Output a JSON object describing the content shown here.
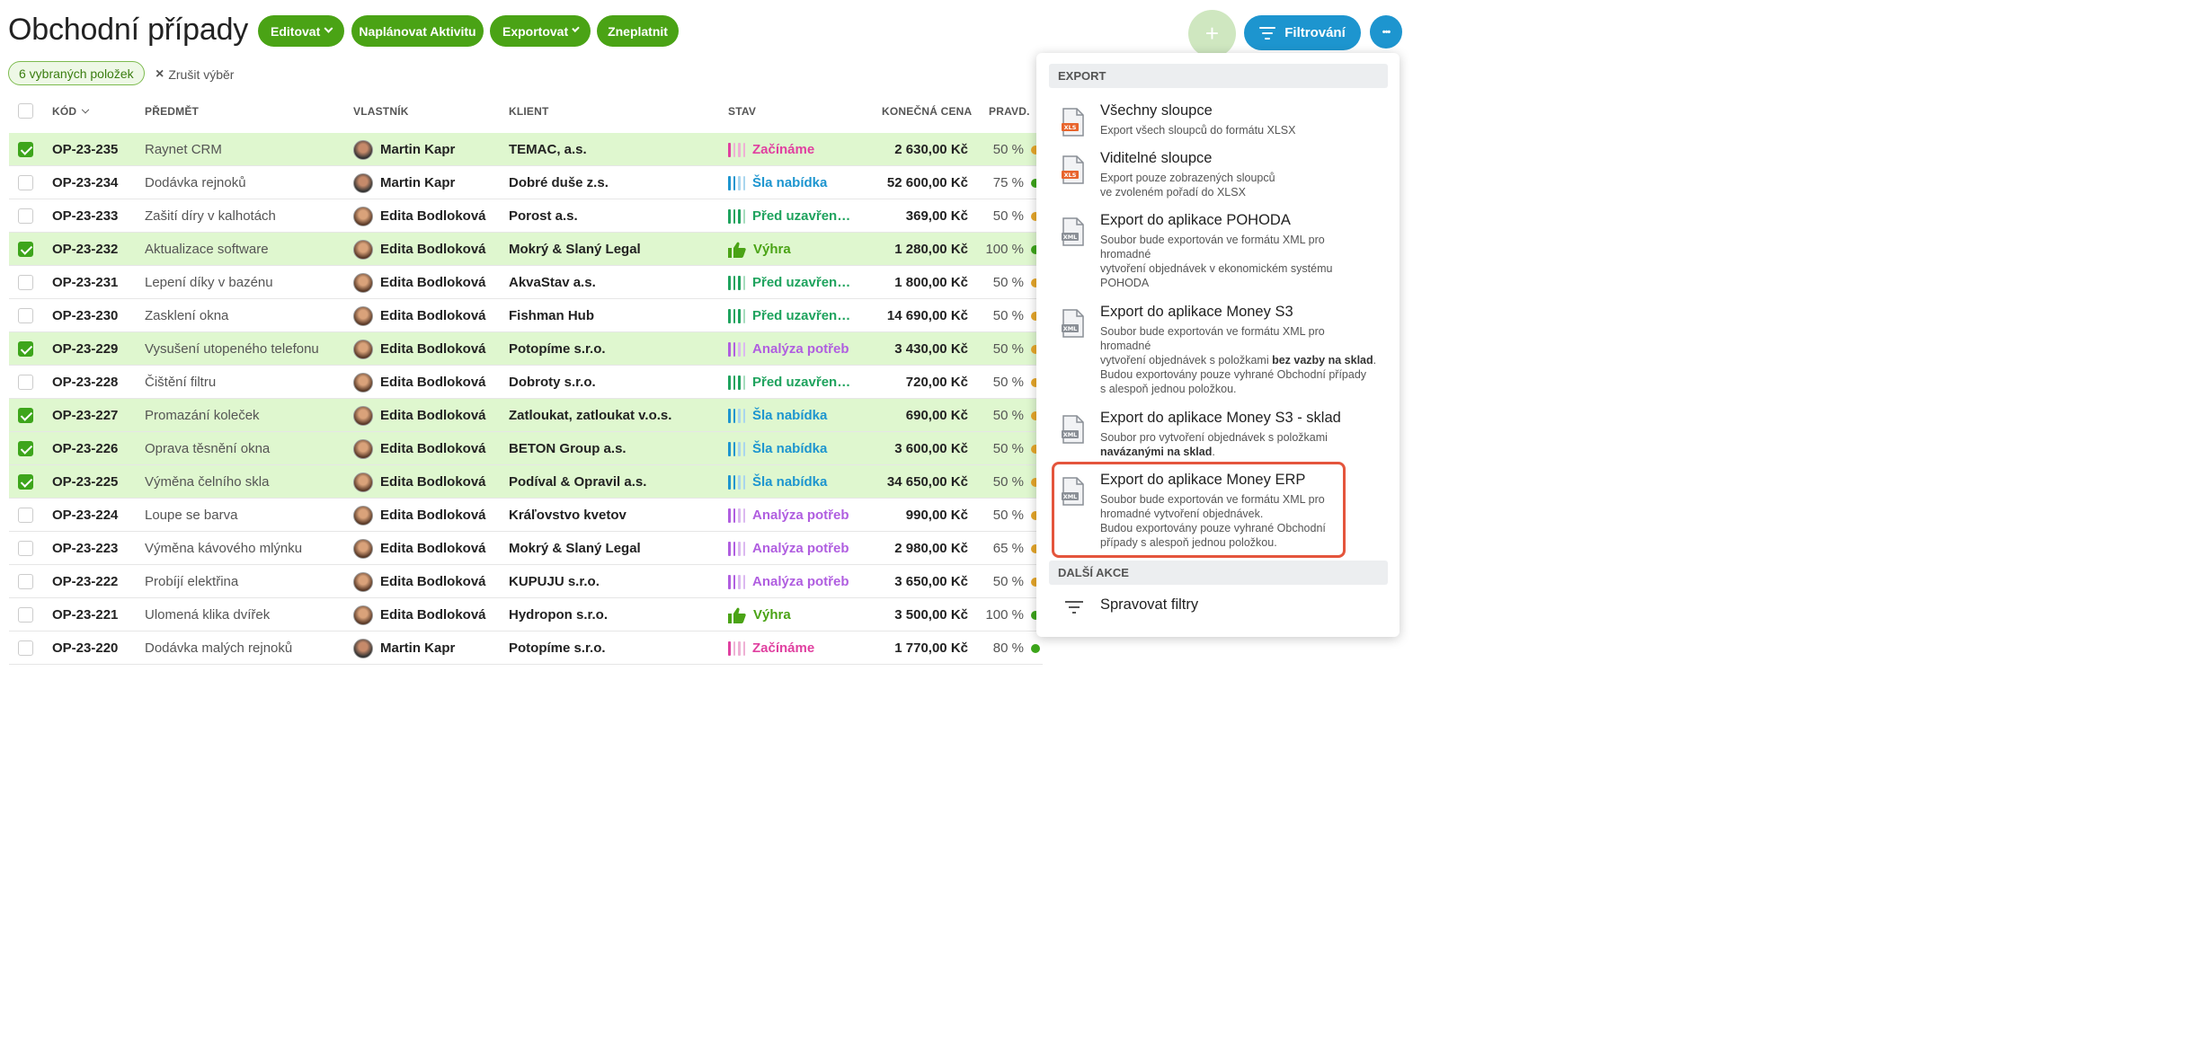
{
  "header": {
    "title": "Obchodní případy",
    "actions": {
      "edit": "Editovat",
      "plan": "Naplánovat Aktivitu",
      "export": "Exportovat",
      "invalidate": "Zneplatnit"
    },
    "add": "+",
    "filter": "Filtrování",
    "more": "•••"
  },
  "selection": {
    "count_label": "6 vybraných položek",
    "clear_label": "Zrušit výběr",
    "clear_icon": "×"
  },
  "table": {
    "columns": {
      "code": "KÓD",
      "subject": "PŘEDMĚT",
      "owner": "VLASTNÍK",
      "client": "KLIENT",
      "state": "STAV",
      "price": "KONEČNÁ CENA",
      "prob": "PRAVD."
    },
    "rows": [
      {
        "selected": true,
        "code": "OP-23-235",
        "subject": "Raynet CRM",
        "owner": "Martin Kapr",
        "client": "TEMAC, a.s.",
        "state": "Začínáme",
        "state_type": "start",
        "price": "2 630,00 Kč",
        "prob": "50 %",
        "dot_color": "#e6a72a"
      },
      {
        "selected": false,
        "code": "OP-23-234",
        "subject": "Dodávka rejnoků",
        "owner": "Martin Kapr",
        "client": "Dobré duše z.s.",
        "state": "Šla nabídka",
        "state_type": "offer",
        "price": "52 600,00 Kč",
        "prob": "75 %",
        "dot_color": "#3da51b"
      },
      {
        "selected": false,
        "code": "OP-23-233",
        "subject": "Zašití díry v kalhotách",
        "owner": "Edita Bodloková",
        "client": "Porost a.s.",
        "state": "Před uzavřen…",
        "state_type": "closing",
        "price": "369,00 Kč",
        "prob": "50 %",
        "dot_color": "#e6a72a"
      },
      {
        "selected": true,
        "code": "OP-23-232",
        "subject": "Aktualizace software",
        "owner": "Edita Bodloková",
        "client": "Mokrý & Slaný Legal",
        "state": "Výhra",
        "state_type": "win",
        "price": "1 280,00 Kč",
        "prob": "100 %",
        "dot_color": "#3da51b"
      },
      {
        "selected": false,
        "code": "OP-23-231",
        "subject": "Lepení díky v bazénu",
        "owner": "Edita Bodloková",
        "client": "AkvaStav a.s.",
        "state": "Před uzavřen…",
        "state_type": "closing",
        "price": "1 800,00 Kč",
        "prob": "50 %",
        "dot_color": "#e6a72a"
      },
      {
        "selected": false,
        "code": "OP-23-230",
        "subject": "Zasklení okna",
        "owner": "Edita Bodloková",
        "client": "Fishman Hub",
        "state": "Před uzavřen…",
        "state_type": "closing",
        "price": "14 690,00 Kč",
        "prob": "50 %",
        "dot_color": "#e6a72a"
      },
      {
        "selected": true,
        "code": "OP-23-229",
        "subject": "Vysušení utopeného telefonu",
        "owner": "Edita Bodloková",
        "client": "Potopíme s.r.o.",
        "state": "Analýza potřeb",
        "state_type": "analysis",
        "price": "3 430,00 Kč",
        "prob": "50 %",
        "dot_color": "#e6a72a"
      },
      {
        "selected": false,
        "code": "OP-23-228",
        "subject": "Čištění filtru",
        "owner": "Edita Bodloková",
        "client": "Dobroty s.r.o.",
        "state": "Před uzavřen…",
        "state_type": "closing",
        "price": "720,00 Kč",
        "prob": "50 %",
        "dot_color": "#e6a72a"
      },
      {
        "selected": true,
        "code": "OP-23-227",
        "subject": "Promazání koleček",
        "owner": "Edita Bodloková",
        "client": "Zatloukat, zatloukat v.o.s.",
        "state": "Šla nabídka",
        "state_type": "offer",
        "price": "690,00 Kč",
        "prob": "50 %",
        "dot_color": "#e6a72a"
      },
      {
        "selected": true,
        "code": "OP-23-226",
        "subject": "Oprava těsnění okna",
        "owner": "Edita Bodloková",
        "client": "BETON Group a.s.",
        "state": "Šla nabídka",
        "state_type": "offer",
        "price": "3 600,00 Kč",
        "prob": "50 %",
        "dot_color": "#e6a72a"
      },
      {
        "selected": true,
        "code": "OP-23-225",
        "subject": "Výměna čelního skla",
        "owner": "Edita Bodloková",
        "client": "Podíval & Opravil a.s.",
        "state": "Šla nabídka",
        "state_type": "offer",
        "price": "34 650,00 Kč",
        "prob": "50 %",
        "dot_color": "#e6a72a"
      },
      {
        "selected": false,
        "code": "OP-23-224",
        "subject": "Loupe se barva",
        "owner": "Edita Bodloková",
        "client": "Kráľovstvo kvetov",
        "state": "Analýza potřeb",
        "state_type": "analysis",
        "price": "990,00 Kč",
        "prob": "50 %",
        "dot_color": "#e6a72a"
      },
      {
        "selected": false,
        "code": "OP-23-223",
        "subject": "Výměna kávového mlýnku",
        "owner": "Edita Bodloková",
        "client": "Mokrý & Slaný Legal",
        "state": "Analýza potřeb",
        "state_type": "analysis",
        "price": "2 980,00 Kč",
        "prob": "65 %",
        "dot_color": "#e6a72a"
      },
      {
        "selected": false,
        "code": "OP-23-222",
        "subject": "Probíjí elektřina",
        "owner": "Edita Bodloková",
        "client": "KUPUJU s.r.o.",
        "state": "Analýza potřeb",
        "state_type": "analysis",
        "price": "3 650,00 Kč",
        "prob": "50 %",
        "dot_color": "#e6a72a"
      },
      {
        "selected": false,
        "code": "OP-23-221",
        "subject": "Ulomená klika dvířek",
        "owner": "Edita Bodloková",
        "client": "Hydropon s.r.o.",
        "state": "Výhra",
        "state_type": "win",
        "price": "3 500,00 Kč",
        "prob": "100 %",
        "dot_color": "#3da51b"
      },
      {
        "selected": false,
        "code": "OP-23-220",
        "subject": "Dodávka malých rejnoků",
        "owner": "Martin Kapr",
        "client": "Potopíme s.r.o.",
        "state": "Začínáme",
        "state_type": "start",
        "price": "1 770,00 Kč",
        "prob": "80 %",
        "dot_color": "#3da51b"
      }
    ]
  },
  "state_colors": {
    "start": "#e040a0",
    "offer": "#1d95cf",
    "closing": "#1fa35e",
    "win": "#4aa315",
    "analysis": "#b05ee0"
  },
  "dropdown": {
    "export_header": "EXPORT",
    "items": [
      {
        "icon": "xlsx-file-icon",
        "title": "Všechny sloupce",
        "desc": "Export všech sloupců do formátu XLSX"
      },
      {
        "icon": "xlsx-file-icon",
        "title": "Viditelné sloupce",
        "desc_lines": [
          "Export pouze zobrazených sloupců",
          "ve zvoleném pořadí do XLSX"
        ]
      },
      {
        "icon": "xml-file-icon",
        "title": "Export do aplikace POHODA",
        "desc_lines": [
          "Soubor bude exportován ve formátu XML pro",
          "hromadné",
          "vytvoření objednávek v ekonomickém systému",
          "POHODA"
        ]
      },
      {
        "icon": "xml-file-icon",
        "title": "Export do aplikace Money S3",
        "desc_lines": [
          "Soubor bude exportován ve formátu XML pro",
          "hromadné"
        ],
        "desc_mid": "vytvoření objednávek s položkami ",
        "desc_bold": "bez vazby na sklad",
        "desc_after": ".",
        "desc_tail": [
          "Budou exportovány pouze vyhrané Obchodní případy",
          "s alespoň jednou položkou."
        ]
      },
      {
        "icon": "xml-file-icon",
        "title": "Export do aplikace Money S3 - sklad",
        "desc_pre": "Soubor pro vytvoření objednávek s položkami",
        "desc_bold": "navázanými na sklad",
        "desc_after": "."
      },
      {
        "icon": "xml-file-icon",
        "title": "Export do aplikace Money ERP",
        "desc_lines": [
          "Soubor bude exportován ve formátu XML pro",
          "hromadné vytvoření objednávek.",
          "Budou exportovány pouze vyhrané Obchodní",
          "případy s alespoň jednou položkou."
        ]
      }
    ],
    "other_header": "DALŠÍ AKCE",
    "manage_filters": "Spravovat filtry"
  },
  "icon_labels": {
    "xlsx": "XLS",
    "xml": "XML"
  }
}
